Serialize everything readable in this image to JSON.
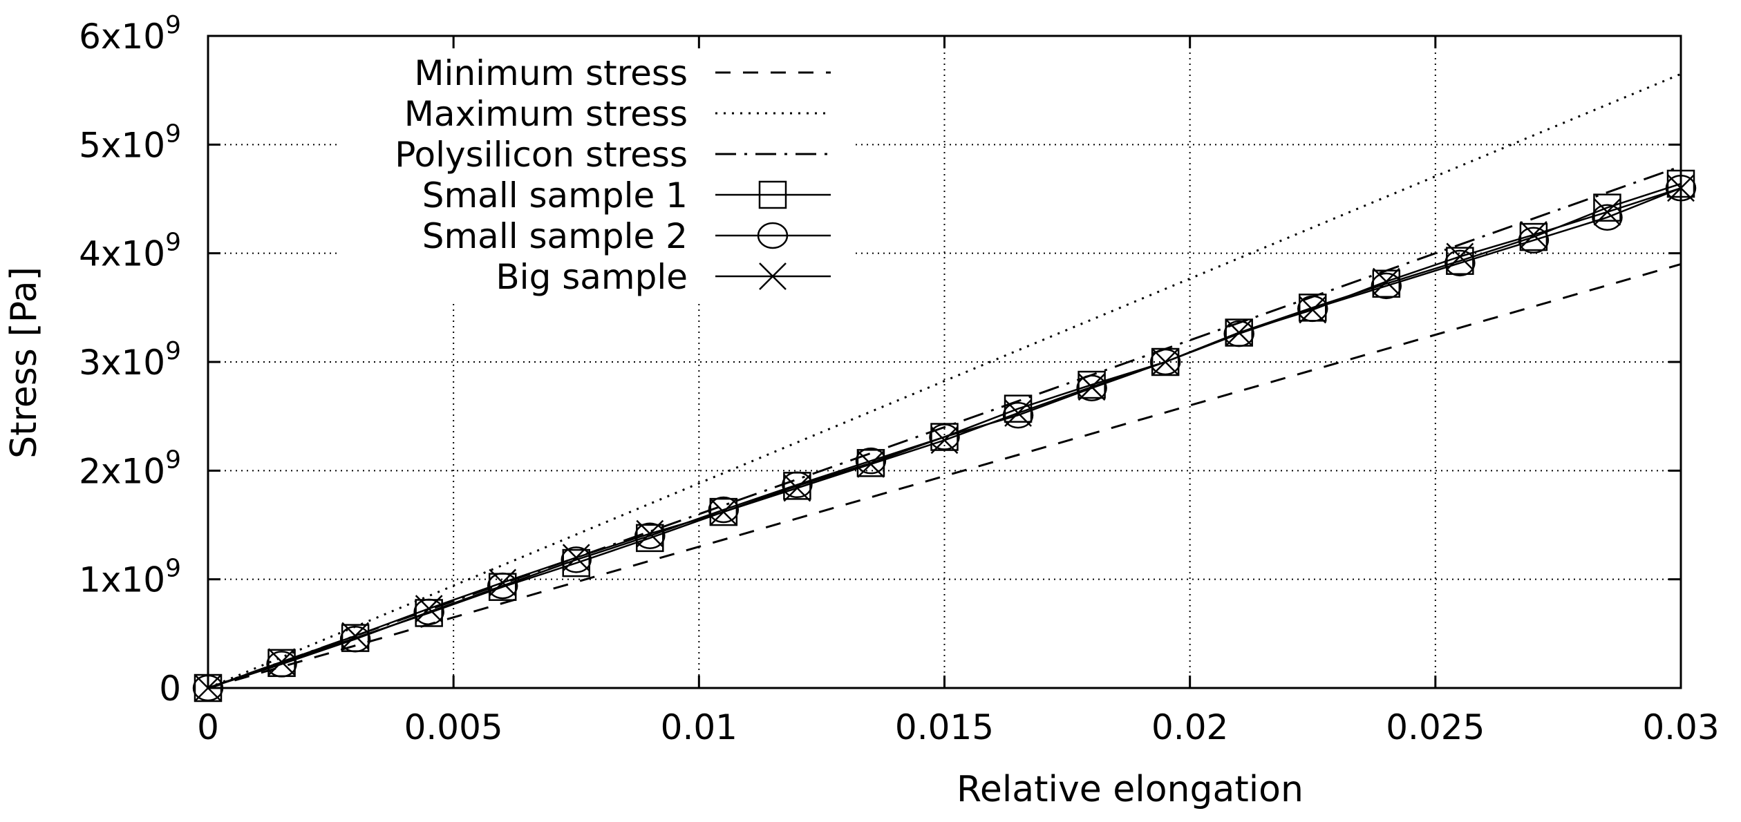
{
  "chart_data": {
    "type": "line",
    "title": "",
    "xlabel": "Relative elongation",
    "ylabel": "Stress [Pa]",
    "xlim": [
      0,
      0.03
    ],
    "ylim": [
      0,
      6000000000
    ],
    "grid": true,
    "legend_position": "top-left",
    "x_ticks": [
      {
        "value": 0,
        "label": "0"
      },
      {
        "value": 0.005,
        "label": "0.005"
      },
      {
        "value": 0.01,
        "label": "0.01"
      },
      {
        "value": 0.015,
        "label": "0.015"
      },
      {
        "value": 0.02,
        "label": "0.02"
      },
      {
        "value": 0.025,
        "label": "0.025"
      },
      {
        "value": 0.03,
        "label": "0.03"
      }
    ],
    "y_ticks": [
      {
        "value": 0,
        "mantissa": "0",
        "exponent": ""
      },
      {
        "value": 1000000000,
        "mantissa": "1x10",
        "exponent": "9"
      },
      {
        "value": 2000000000,
        "mantissa": "2x10",
        "exponent": "9"
      },
      {
        "value": 3000000000,
        "mantissa": "3x10",
        "exponent": "9"
      },
      {
        "value": 4000000000,
        "mantissa": "4x10",
        "exponent": "9"
      },
      {
        "value": 5000000000,
        "mantissa": "5x10",
        "exponent": "9"
      },
      {
        "value": 6000000000,
        "mantissa": "6x10",
        "exponent": "9"
      }
    ],
    "series": [
      {
        "name": "Minimum stress",
        "style": "dashed",
        "marker": "none",
        "x": [
          0,
          0.03
        ],
        "y": [
          0,
          3900000000
        ]
      },
      {
        "name": "Maximum stress",
        "style": "dotted",
        "marker": "none",
        "x": [
          0,
          0.03
        ],
        "y": [
          0,
          5650000000
        ]
      },
      {
        "name": "Polysilicon stress",
        "style": "dashdot",
        "marker": "none",
        "x": [
          0,
          0.03
        ],
        "y": [
          0,
          4800000000
        ]
      },
      {
        "name": "Small sample 1",
        "style": "solid",
        "marker": "square",
        "x": [
          0,
          0.0015,
          0.003,
          0.0045,
          0.006,
          0.0075,
          0.009,
          0.0105,
          0.012,
          0.0135,
          0.015,
          0.0165,
          0.018,
          0.0195,
          0.021,
          0.0225,
          0.024,
          0.0255,
          0.027,
          0.0285,
          0.03
        ],
        "y": [
          0,
          230000000,
          460000000,
          690000000,
          930000000,
          1150000000,
          1380000000,
          1620000000,
          1860000000,
          2070000000,
          2310000000,
          2570000000,
          2790000000,
          3000000000,
          3270000000,
          3500000000,
          3720000000,
          3930000000,
          4150000000,
          4420000000,
          4640000000
        ]
      },
      {
        "name": "Small sample 2",
        "style": "solid",
        "marker": "circle",
        "x": [
          0,
          0.0015,
          0.003,
          0.0045,
          0.006,
          0.0075,
          0.009,
          0.0105,
          0.012,
          0.0135,
          0.015,
          0.0165,
          0.018,
          0.0195,
          0.021,
          0.0225,
          0.024,
          0.0255,
          0.027,
          0.0285,
          0.03
        ],
        "y": [
          0,
          220000000,
          450000000,
          700000000,
          940000000,
          1180000000,
          1400000000,
          1640000000,
          1870000000,
          2090000000,
          2310000000,
          2510000000,
          2760000000,
          3000000000,
          3260000000,
          3490000000,
          3700000000,
          3910000000,
          4120000000,
          4330000000,
          4600000000
        ]
      },
      {
        "name": "Big sample",
        "style": "solid",
        "marker": "x",
        "x": [
          0,
          0.0015,
          0.003,
          0.0045,
          0.006,
          0.0075,
          0.009,
          0.0105,
          0.012,
          0.0135,
          0.015,
          0.0165,
          0.018,
          0.0195,
          0.021,
          0.0225,
          0.024,
          0.0255,
          0.027,
          0.0285,
          0.03
        ],
        "y": [
          0,
          240000000,
          480000000,
          730000000,
          970000000,
          1200000000,
          1420000000,
          1620000000,
          1840000000,
          2060000000,
          2280000000,
          2530000000,
          2770000000,
          3000000000,
          3270000000,
          3480000000,
          3740000000,
          3970000000,
          4170000000,
          4380000000,
          4600000000
        ]
      }
    ]
  }
}
